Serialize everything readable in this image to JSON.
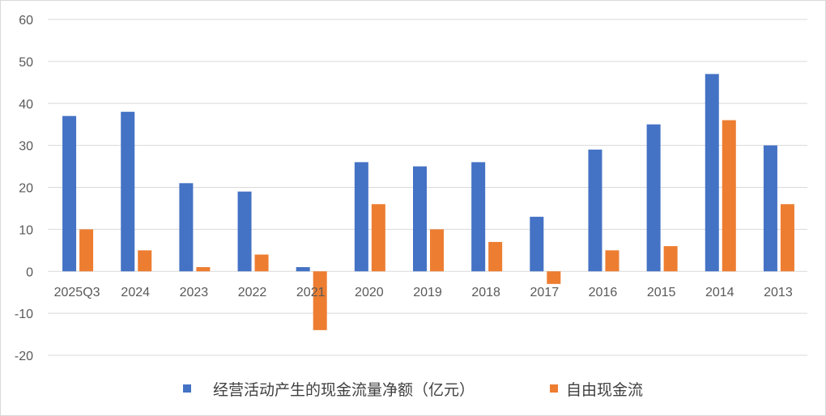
{
  "chart_data": {
    "type": "bar",
    "categories": [
      "2025Q3",
      "2024",
      "2023",
      "2022",
      "2021",
      "2020",
      "2019",
      "2018",
      "2017",
      "2016",
      "2015",
      "2014",
      "2013"
    ],
    "series": [
      {
        "name": "经营活动产生的现金流量净额（亿元）",
        "color": "#4472C4",
        "values": [
          37,
          38,
          21,
          19,
          1,
          26,
          25,
          26,
          13,
          29,
          35,
          47,
          30
        ]
      },
      {
        "name": "自由现金流",
        "color": "#ED7D31",
        "values": [
          10,
          5,
          1,
          4,
          -14,
          16,
          10,
          7,
          -3,
          5,
          6,
          36,
          16
        ]
      }
    ],
    "ylim": [
      -20,
      60
    ],
    "yticks": [
      -20,
      -10,
      0,
      10,
      20,
      30,
      40,
      50,
      60
    ],
    "grid": true,
    "legend": "bottom",
    "title": "",
    "xlabel": "",
    "ylabel": ""
  }
}
